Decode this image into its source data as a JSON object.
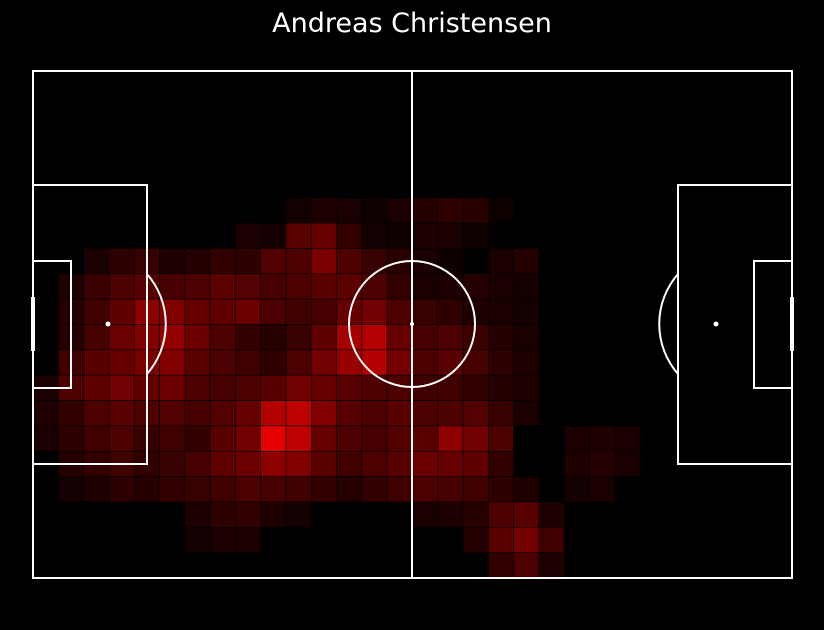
{
  "chart_data": {
    "type": "heatmap",
    "title": "Andreas Christensen",
    "pitch": {
      "length": 105,
      "width": 68,
      "line_color": "#ffffff",
      "background": "#000000"
    },
    "grid": {
      "cols": 30,
      "rows": 20
    },
    "color_scale": {
      "low": "#000000",
      "high": "#ff0000"
    },
    "cells": [
      [
        10,
        5,
        0.08
      ],
      [
        11,
        5,
        0.12
      ],
      [
        12,
        5,
        0.1
      ],
      [
        13,
        5,
        0.05
      ],
      [
        14,
        5,
        0.1
      ],
      [
        15,
        5,
        0.14
      ],
      [
        16,
        5,
        0.18
      ],
      [
        17,
        5,
        0.16
      ],
      [
        18,
        5,
        0.05
      ],
      [
        8,
        6,
        0.1
      ],
      [
        9,
        6,
        0.08
      ],
      [
        10,
        6,
        0.35
      ],
      [
        11,
        6,
        0.4
      ],
      [
        12,
        6,
        0.2
      ],
      [
        13,
        6,
        0.08
      ],
      [
        14,
        6,
        0.06
      ],
      [
        15,
        6,
        0.12
      ],
      [
        16,
        6,
        0.1
      ],
      [
        17,
        6,
        0.06
      ],
      [
        2,
        7,
        0.1
      ],
      [
        3,
        7,
        0.18
      ],
      [
        4,
        7,
        0.22
      ],
      [
        5,
        7,
        0.12
      ],
      [
        6,
        7,
        0.14
      ],
      [
        7,
        7,
        0.2
      ],
      [
        8,
        7,
        0.18
      ],
      [
        9,
        7,
        0.32
      ],
      [
        10,
        7,
        0.3
      ],
      [
        11,
        7,
        0.48
      ],
      [
        12,
        7,
        0.3
      ],
      [
        13,
        7,
        0.22
      ],
      [
        14,
        7,
        0.16
      ],
      [
        15,
        7,
        0.1
      ],
      [
        16,
        7,
        0.06
      ],
      [
        18,
        7,
        0.1
      ],
      [
        19,
        7,
        0.14
      ],
      [
        1,
        8,
        0.12
      ],
      [
        2,
        8,
        0.22
      ],
      [
        3,
        8,
        0.3
      ],
      [
        4,
        8,
        0.35
      ],
      [
        5,
        8,
        0.28
      ],
      [
        6,
        8,
        0.3
      ],
      [
        7,
        8,
        0.36
      ],
      [
        8,
        8,
        0.32
      ],
      [
        9,
        8,
        0.28
      ],
      [
        10,
        8,
        0.3
      ],
      [
        11,
        8,
        0.35
      ],
      [
        12,
        8,
        0.36
      ],
      [
        13,
        8,
        0.3
      ],
      [
        14,
        8,
        0.2
      ],
      [
        15,
        8,
        0.1
      ],
      [
        16,
        8,
        0.12
      ],
      [
        17,
        8,
        0.14
      ],
      [
        18,
        8,
        0.1
      ],
      [
        19,
        8,
        0.08
      ],
      [
        1,
        9,
        0.15
      ],
      [
        2,
        9,
        0.25
      ],
      [
        3,
        9,
        0.38
      ],
      [
        4,
        9,
        0.55
      ],
      [
        5,
        9,
        0.5
      ],
      [
        6,
        9,
        0.4
      ],
      [
        7,
        9,
        0.38
      ],
      [
        8,
        9,
        0.42
      ],
      [
        9,
        9,
        0.3
      ],
      [
        10,
        9,
        0.25
      ],
      [
        11,
        9,
        0.28
      ],
      [
        12,
        9,
        0.4
      ],
      [
        13,
        9,
        0.45
      ],
      [
        14,
        9,
        0.3
      ],
      [
        15,
        9,
        0.22
      ],
      [
        16,
        9,
        0.18
      ],
      [
        17,
        9,
        0.12
      ],
      [
        18,
        9,
        0.1
      ],
      [
        19,
        9,
        0.08
      ],
      [
        1,
        10,
        0.15
      ],
      [
        2,
        10,
        0.28
      ],
      [
        3,
        10,
        0.42
      ],
      [
        4,
        10,
        0.5
      ],
      [
        5,
        10,
        0.58
      ],
      [
        6,
        10,
        0.42
      ],
      [
        7,
        10,
        0.3
      ],
      [
        8,
        10,
        0.2
      ],
      [
        9,
        10,
        0.15
      ],
      [
        10,
        10,
        0.22
      ],
      [
        11,
        10,
        0.38
      ],
      [
        12,
        10,
        0.65
      ],
      [
        13,
        10,
        0.7
      ],
      [
        14,
        10,
        0.4
      ],
      [
        15,
        10,
        0.28
      ],
      [
        16,
        10,
        0.3
      ],
      [
        17,
        10,
        0.24
      ],
      [
        18,
        10,
        0.14
      ],
      [
        19,
        10,
        0.1
      ],
      [
        1,
        11,
        0.25
      ],
      [
        2,
        11,
        0.35
      ],
      [
        3,
        11,
        0.4
      ],
      [
        4,
        11,
        0.48
      ],
      [
        5,
        11,
        0.5
      ],
      [
        6,
        11,
        0.35
      ],
      [
        7,
        11,
        0.3
      ],
      [
        8,
        11,
        0.25
      ],
      [
        9,
        11,
        0.18
      ],
      [
        10,
        11,
        0.3
      ],
      [
        11,
        11,
        0.45
      ],
      [
        12,
        11,
        0.6
      ],
      [
        13,
        11,
        0.7
      ],
      [
        14,
        11,
        0.45
      ],
      [
        15,
        11,
        0.3
      ],
      [
        16,
        11,
        0.35
      ],
      [
        17,
        11,
        0.28
      ],
      [
        18,
        11,
        0.18
      ],
      [
        19,
        11,
        0.12
      ],
      [
        0,
        12,
        0.1
      ],
      [
        1,
        12,
        0.3
      ],
      [
        2,
        12,
        0.38
      ],
      [
        3,
        12,
        0.45
      ],
      [
        4,
        12,
        0.38
      ],
      [
        5,
        12,
        0.42
      ],
      [
        6,
        12,
        0.3
      ],
      [
        7,
        12,
        0.28
      ],
      [
        8,
        12,
        0.3
      ],
      [
        9,
        12,
        0.35
      ],
      [
        10,
        12,
        0.45
      ],
      [
        11,
        12,
        0.4
      ],
      [
        12,
        12,
        0.35
      ],
      [
        13,
        12,
        0.3
      ],
      [
        14,
        12,
        0.3
      ],
      [
        15,
        12,
        0.25
      ],
      [
        16,
        12,
        0.25
      ],
      [
        17,
        12,
        0.2
      ],
      [
        18,
        12,
        0.15
      ],
      [
        19,
        12,
        0.12
      ],
      [
        0,
        13,
        0.12
      ],
      [
        1,
        13,
        0.2
      ],
      [
        2,
        13,
        0.3
      ],
      [
        3,
        13,
        0.35
      ],
      [
        4,
        13,
        0.3
      ],
      [
        5,
        13,
        0.32
      ],
      [
        6,
        13,
        0.28
      ],
      [
        7,
        13,
        0.32
      ],
      [
        8,
        13,
        0.4
      ],
      [
        9,
        13,
        0.7
      ],
      [
        10,
        13,
        0.75
      ],
      [
        11,
        13,
        0.5
      ],
      [
        12,
        13,
        0.35
      ],
      [
        13,
        13,
        0.3
      ],
      [
        14,
        13,
        0.35
      ],
      [
        15,
        13,
        0.3
      ],
      [
        16,
        13,
        0.3
      ],
      [
        17,
        13,
        0.32
      ],
      [
        18,
        13,
        0.22
      ],
      [
        19,
        13,
        0.1
      ],
      [
        0,
        14,
        0.1
      ],
      [
        1,
        14,
        0.18
      ],
      [
        2,
        14,
        0.25
      ],
      [
        3,
        14,
        0.3
      ],
      [
        4,
        14,
        0.22
      ],
      [
        5,
        14,
        0.25
      ],
      [
        6,
        14,
        0.2
      ],
      [
        7,
        14,
        0.35
      ],
      [
        8,
        14,
        0.45
      ],
      [
        9,
        14,
        0.9
      ],
      [
        10,
        14,
        0.75
      ],
      [
        11,
        14,
        0.4
      ],
      [
        12,
        14,
        0.3
      ],
      [
        13,
        14,
        0.28
      ],
      [
        14,
        14,
        0.32
      ],
      [
        15,
        14,
        0.35
      ],
      [
        16,
        14,
        0.55
      ],
      [
        17,
        14,
        0.45
      ],
      [
        18,
        14,
        0.3
      ],
      [
        21,
        14,
        0.1
      ],
      [
        22,
        14,
        0.12
      ],
      [
        23,
        14,
        0.1
      ],
      [
        1,
        15,
        0.15
      ],
      [
        2,
        15,
        0.2
      ],
      [
        3,
        15,
        0.25
      ],
      [
        4,
        15,
        0.2
      ],
      [
        5,
        15,
        0.22
      ],
      [
        6,
        15,
        0.28
      ],
      [
        7,
        15,
        0.38
      ],
      [
        8,
        15,
        0.42
      ],
      [
        9,
        15,
        0.55
      ],
      [
        10,
        15,
        0.5
      ],
      [
        11,
        15,
        0.35
      ],
      [
        12,
        15,
        0.25
      ],
      [
        13,
        15,
        0.3
      ],
      [
        14,
        15,
        0.35
      ],
      [
        15,
        15,
        0.42
      ],
      [
        16,
        15,
        0.4
      ],
      [
        17,
        15,
        0.38
      ],
      [
        18,
        15,
        0.2
      ],
      [
        21,
        15,
        0.12
      ],
      [
        22,
        15,
        0.15
      ],
      [
        23,
        15,
        0.1
      ],
      [
        1,
        16,
        0.08
      ],
      [
        2,
        16,
        0.12
      ],
      [
        3,
        16,
        0.18
      ],
      [
        4,
        16,
        0.15
      ],
      [
        5,
        16,
        0.2
      ],
      [
        6,
        16,
        0.22
      ],
      [
        7,
        16,
        0.25
      ],
      [
        8,
        16,
        0.3
      ],
      [
        9,
        16,
        0.28
      ],
      [
        10,
        16,
        0.25
      ],
      [
        11,
        16,
        0.2
      ],
      [
        12,
        16,
        0.15
      ],
      [
        13,
        16,
        0.2
      ],
      [
        14,
        16,
        0.25
      ],
      [
        15,
        16,
        0.3
      ],
      [
        16,
        16,
        0.28
      ],
      [
        17,
        16,
        0.25
      ],
      [
        18,
        16,
        0.18
      ],
      [
        19,
        16,
        0.12
      ],
      [
        21,
        16,
        0.08
      ],
      [
        22,
        16,
        0.1
      ],
      [
        6,
        17,
        0.12
      ],
      [
        7,
        17,
        0.18
      ],
      [
        8,
        17,
        0.2
      ],
      [
        9,
        17,
        0.12
      ],
      [
        10,
        17,
        0.08
      ],
      [
        15,
        17,
        0.1
      ],
      [
        16,
        17,
        0.12
      ],
      [
        17,
        17,
        0.15
      ],
      [
        18,
        17,
        0.3
      ],
      [
        19,
        17,
        0.35
      ],
      [
        20,
        17,
        0.12
      ],
      [
        6,
        18,
        0.08
      ],
      [
        7,
        18,
        0.12
      ],
      [
        8,
        18,
        0.1
      ],
      [
        17,
        18,
        0.15
      ],
      [
        18,
        18,
        0.35
      ],
      [
        19,
        18,
        0.45
      ],
      [
        20,
        18,
        0.25
      ],
      [
        18,
        19,
        0.2
      ],
      [
        19,
        19,
        0.3
      ],
      [
        20,
        19,
        0.12
      ]
    ]
  }
}
